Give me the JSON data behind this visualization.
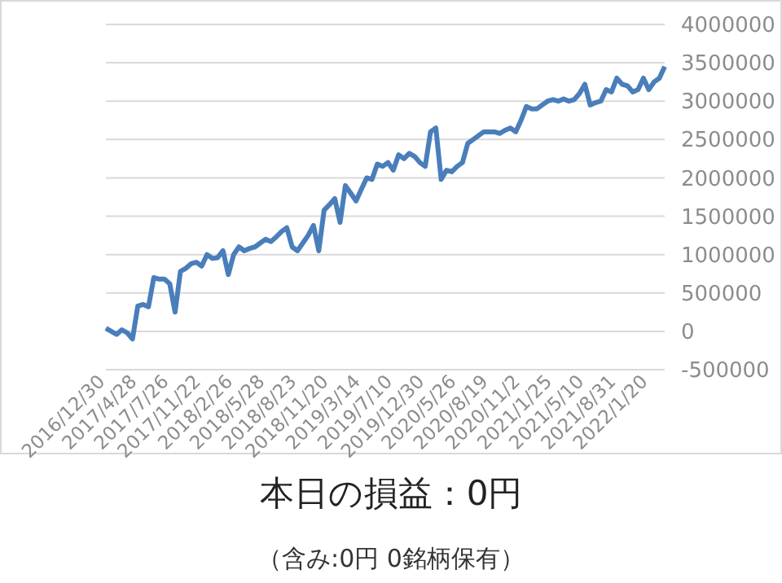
{
  "chart_data": {
    "type": "line",
    "title": "本日の損益：0円",
    "subtitle": "（含み:0円 0銘柄保有）",
    "categories": [
      "2016/12/30",
      null,
      null,
      null,
      null,
      null,
      "2017/4/28",
      null,
      null,
      null,
      null,
      null,
      "2017/7/26",
      null,
      null,
      null,
      null,
      null,
      "2017/11/22",
      null,
      null,
      null,
      null,
      null,
      "2018/2/26",
      null,
      null,
      null,
      null,
      null,
      "2018/5/28",
      null,
      null,
      null,
      null,
      null,
      "2018/8/23",
      null,
      null,
      null,
      null,
      null,
      "2018/11/20",
      null,
      null,
      null,
      null,
      null,
      "2019/3/14",
      null,
      null,
      null,
      null,
      null,
      "2019/7/10",
      null,
      null,
      null,
      null,
      null,
      "2019/12/30",
      null,
      null,
      null,
      null,
      null,
      "2020/5/26",
      null,
      null,
      null,
      null,
      null,
      "2020/8/19",
      null,
      null,
      null,
      null,
      null,
      "2020/11/2",
      null,
      null,
      null,
      null,
      null,
      "2021/1/25",
      null,
      null,
      null,
      null,
      null,
      "2021/5/10",
      null,
      null,
      null,
      null,
      null,
      "2021/8/31",
      null,
      null,
      null,
      null,
      null,
      "2022/1/20",
      null,
      null,
      null
    ],
    "series": [
      {
        "color": "#4a7ebb",
        "values": [
          40000,
          0,
          -40000,
          20000,
          -20000,
          -100000,
          330000,
          350000,
          320000,
          700000,
          680000,
          680000,
          620000,
          250000,
          780000,
          820000,
          880000,
          900000,
          850000,
          1000000,
          950000,
          960000,
          1050000,
          740000,
          1000000,
          1100000,
          1050000,
          1080000,
          1100000,
          1150000,
          1200000,
          1170000,
          1230000,
          1300000,
          1350000,
          1100000,
          1050000,
          1150000,
          1250000,
          1380000,
          1050000,
          1580000,
          1650000,
          1730000,
          1420000,
          1900000,
          1800000,
          1700000,
          1850000,
          2000000,
          1980000,
          2180000,
          2150000,
          2200000,
          2100000,
          2300000,
          2250000,
          2320000,
          2280000,
          2200000,
          2150000,
          2600000,
          2650000,
          1980000,
          2100000,
          2080000,
          2150000,
          2200000,
          2450000,
          2500000,
          2550000,
          2600000,
          2600000,
          2600000,
          2580000,
          2620000,
          2650000,
          2600000,
          2750000,
          2930000,
          2900000,
          2900000,
          2950000,
          3000000,
          3020000,
          3000000,
          3030000,
          3000000,
          3020000,
          3100000,
          3220000,
          2950000,
          2980000,
          3000000,
          3150000,
          3120000,
          3300000,
          3220000,
          3200000,
          3120000,
          3150000,
          3300000,
          3150000,
          3250000,
          3300000,
          3450000
        ]
      }
    ],
    "ylim": [
      -500000,
      4000000
    ],
    "yticks": [
      -500000,
      0,
      500000,
      1000000,
      1500000,
      2000000,
      2500000,
      3000000,
      3500000,
      4000000
    ],
    "grid": "y",
    "marker": "none",
    "line_style": "solid"
  }
}
